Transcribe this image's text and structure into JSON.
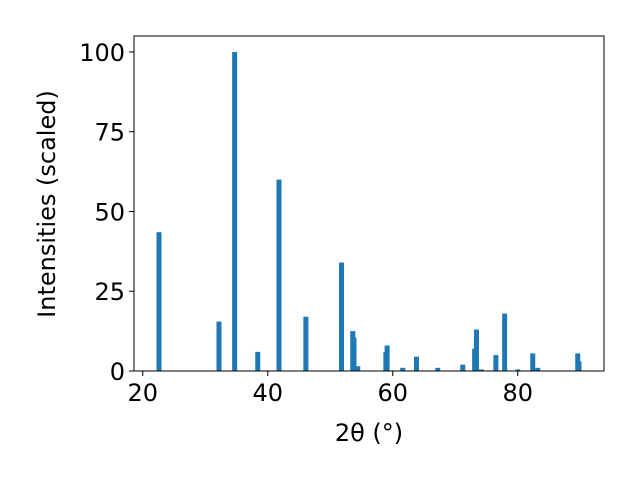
{
  "chart_data": {
    "type": "bar",
    "xlabel": "2θ (°)",
    "ylabel": "Intensities (scaled)",
    "x": [
      22.6,
      32.2,
      34.7,
      38.4,
      41.8,
      46.1,
      51.8,
      53.6,
      53.8,
      54.4,
      58.9,
      59.1,
      61.6,
      63.8,
      67.2,
      71.2,
      73.1,
      73.4,
      74.2,
      76.5,
      77.9,
      80.0,
      82.4,
      83.2,
      89.6,
      89.8
    ],
    "values": [
      43.5,
      15.5,
      100,
      6,
      60,
      17,
      34,
      12.5,
      10.5,
      1.5,
      6,
      8,
      1,
      4.5,
      1,
      2,
      7,
      13,
      0.5,
      5,
      18,
      0.5,
      5.5,
      1,
      5.5,
      3
    ],
    "color": "#1f77b4",
    "xlim": [
      18.6,
      93.8
    ],
    "ylim": [
      0,
      105
    ],
    "xticks": [
      20,
      40,
      60,
      80
    ],
    "yticks": [
      0,
      25,
      50,
      75,
      100
    ]
  }
}
